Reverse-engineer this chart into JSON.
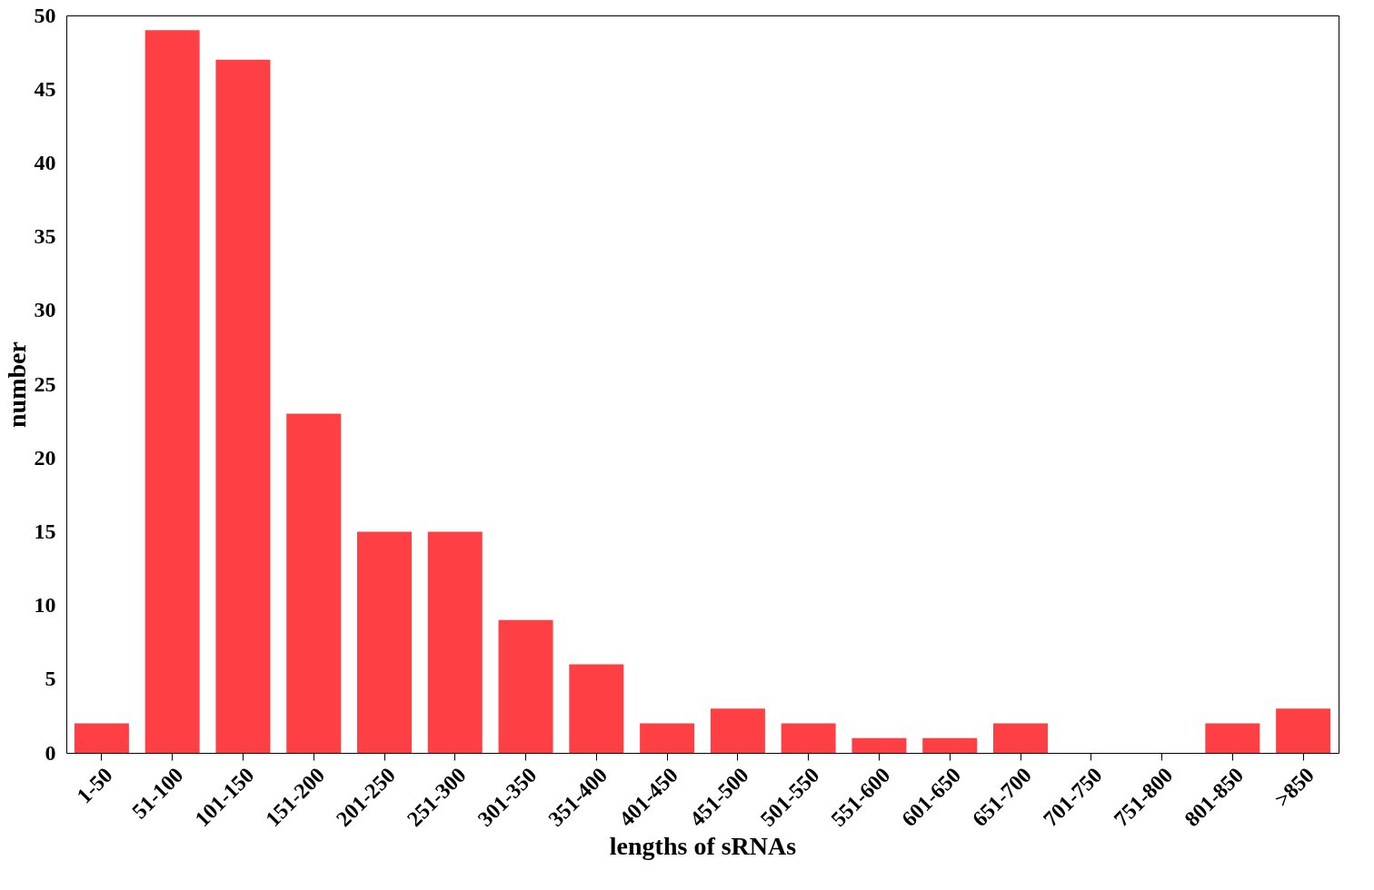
{
  "chart_data": {
    "type": "bar",
    "xlabel": "lengths of sRNAs",
    "ylabel": "number",
    "categories": [
      "1-50",
      "51-100",
      "101-150",
      "151-200",
      "201-250",
      "251-300",
      "301-350",
      "351-400",
      "401-450",
      "451-500",
      "501-550",
      "551-600",
      "601-650",
      "651-700",
      "701-750",
      "751-800",
      "801-850",
      ">850"
    ],
    "values": [
      2,
      49,
      47,
      23,
      15,
      15,
      9,
      6,
      2,
      3,
      2,
      1,
      1,
      2,
      0,
      0,
      2,
      3
    ],
    "color": "#fe3f44",
    "ylim": [
      0,
      50
    ],
    "yticks": [
      0,
      5,
      10,
      15,
      20,
      25,
      30,
      35,
      40,
      45,
      50
    ],
    "grid": false
  }
}
